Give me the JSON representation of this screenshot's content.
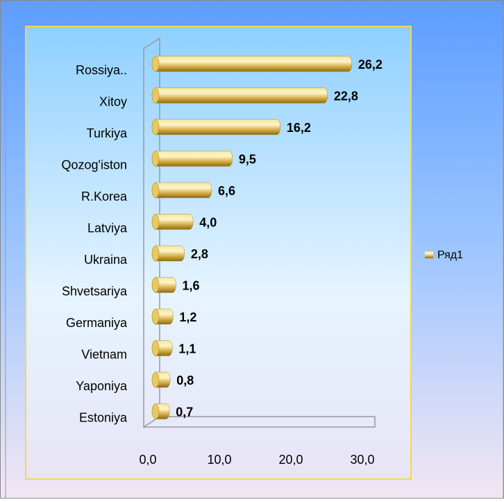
{
  "chart_data": {
    "type": "bar",
    "categories": [
      "Rossiya..",
      "Xitoy",
      "Turkiya",
      "Qozog'iston",
      "R.Korea",
      "Latviya",
      "Ukraina",
      "Shvetsariya",
      "Germaniya",
      "Vietnam",
      "Yaponiya",
      "Estoniya"
    ],
    "series": [
      {
        "name": "Ряд1",
        "color": "#d9b84a",
        "values": [
          26.2,
          22.8,
          16.2,
          9.5,
          6.6,
          4.0,
          2.8,
          1.6,
          1.2,
          1.1,
          0.8,
          0.7
        ],
        "value_labels": [
          "26,2",
          "22,8",
          "16,2",
          "9,5",
          "6,6",
          "4,0",
          "2,8",
          "1,6",
          "1,2",
          "1,1",
          "0,8",
          "0,7"
        ]
      }
    ],
    "xlim": [
      0,
      30
    ],
    "xticks": [
      {
        "value": 0,
        "label": "0,0"
      },
      {
        "value": 10,
        "label": "10,0"
      },
      {
        "value": 20,
        "label": "20,0"
      },
      {
        "value": 30,
        "label": "30,0"
      }
    ],
    "legend": "right"
  }
}
